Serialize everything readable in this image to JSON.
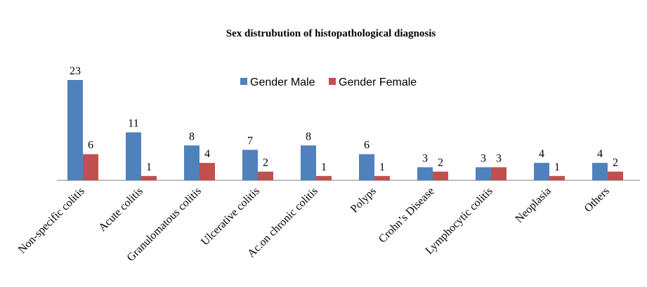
{
  "chart_data": {
    "type": "bar",
    "title": "Sex distrubution of histopathological diagnosis",
    "xlabel": "",
    "ylabel": "",
    "categories": [
      "Non-specific colitis",
      "Acute colitis",
      "Granulomatous colitis",
      "Ulcerative colitis",
      "Ac.on chronic colitis",
      "Polyps",
      "Crohn’s Disease",
      "Lymphocytic colitis",
      "Neoplasia",
      "Others"
    ],
    "series": [
      {
        "name": "Gender Male",
        "color": "#4f81bd",
        "values": [
          23,
          11,
          8,
          7,
          8,
          6,
          3,
          3,
          4,
          4
        ]
      },
      {
        "name": "Gender Female",
        "color": "#c0504d",
        "values": [
          6,
          1,
          4,
          2,
          1,
          1,
          2,
          3,
          1,
          2
        ]
      }
    ],
    "ylim": [
      0,
      23
    ],
    "grid": false,
    "legend": "top-center",
    "data_labels": true
  }
}
